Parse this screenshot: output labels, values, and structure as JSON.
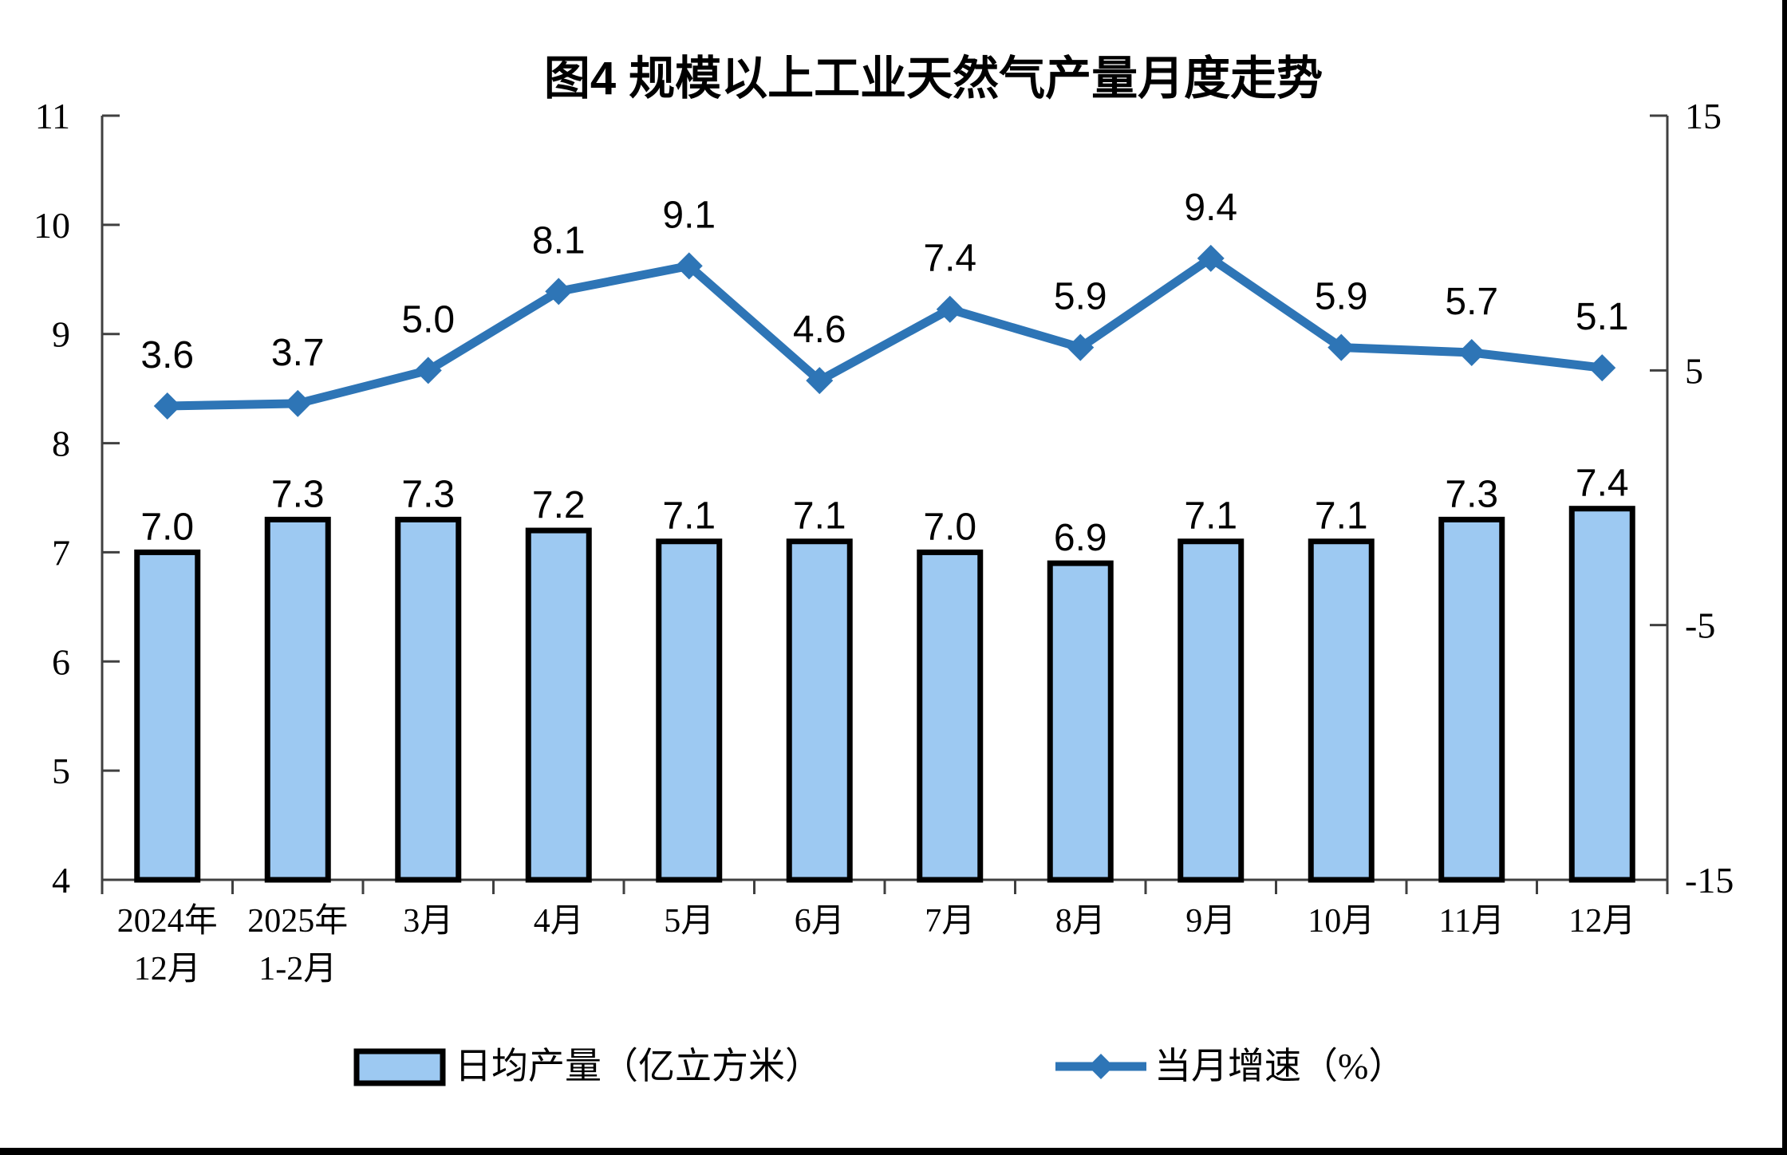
{
  "chart_data": {
    "type": "bar+line",
    "title": "图4 规模以上工业天然气产量月度走势",
    "categories": [
      [
        "2024年",
        "12月"
      ],
      [
        "2025年",
        "1-2月"
      ],
      [
        "3月"
      ],
      [
        "4月"
      ],
      [
        "5月"
      ],
      [
        "6月"
      ],
      [
        "7月"
      ],
      [
        "8月"
      ],
      [
        "9月"
      ],
      [
        "10月"
      ],
      [
        "11月"
      ],
      [
        "12月"
      ]
    ],
    "series": [
      {
        "name": "日均产量（亿立方米）",
        "type": "bar",
        "axis": "left",
        "fill": "#9DC9F2",
        "stroke": "#000000",
        "values": [
          7.0,
          7.3,
          7.3,
          7.2,
          7.1,
          7.1,
          7.0,
          6.9,
          7.1,
          7.1,
          7.3,
          7.4
        ]
      },
      {
        "name": "当月增速（%）",
        "type": "line",
        "axis": "right",
        "color": "#2E75B6",
        "marker": "diamond",
        "values": [
          3.6,
          3.7,
          5.0,
          8.1,
          9.1,
          4.6,
          7.4,
          5.9,
          9.4,
          5.9,
          5.7,
          5.1
        ]
      }
    ],
    "left_axis": {
      "min": 4,
      "max": 11,
      "ticks": [
        4,
        5,
        6,
        7,
        8,
        9,
        10,
        11
      ]
    },
    "right_axis": {
      "min": -15,
      "max": 15,
      "ticks": [
        -15,
        -5,
        5,
        15
      ]
    },
    "grid": false,
    "legend_position": "bottom",
    "value_labels": true,
    "value_label_format": "0.0"
  },
  "colors": {
    "axis": "#404040",
    "text": "#000000",
    "background": "#ffffff",
    "frame": "#000000"
  }
}
